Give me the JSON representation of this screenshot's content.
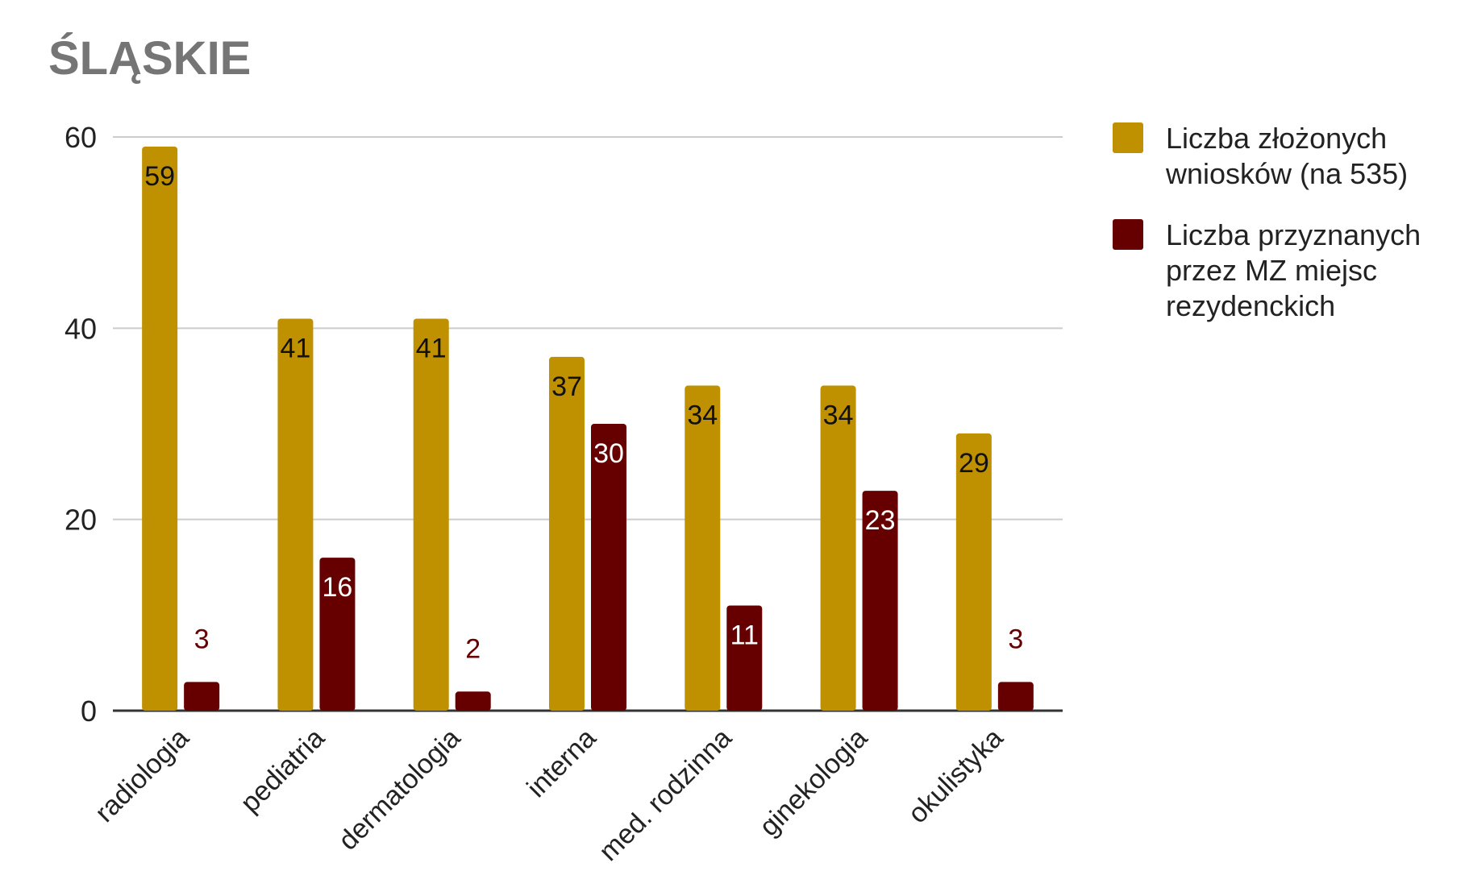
{
  "chart_data": {
    "type": "bar",
    "title": "ŚLĄSKIE",
    "categories": [
      "radiologia",
      "pediatria",
      "dermatologia",
      "interna",
      "med. rodzinna",
      "ginekologia",
      "okulistyka"
    ],
    "series": [
      {
        "name": "Liczba złożonych wniosków (na 535)",
        "values": [
          59,
          41,
          41,
          37,
          34,
          34,
          29
        ],
        "color": "#BF9000"
      },
      {
        "name": "Liczba przyznanych przez MZ miejsc rezydenckich",
        "values": [
          3,
          16,
          2,
          30,
          11,
          23,
          3
        ],
        "color": "#660000"
      }
    ],
    "ylim": [
      0,
      60
    ],
    "yticks": [
      0,
      20,
      40,
      60
    ],
    "grid": true,
    "legend_position": "right"
  }
}
